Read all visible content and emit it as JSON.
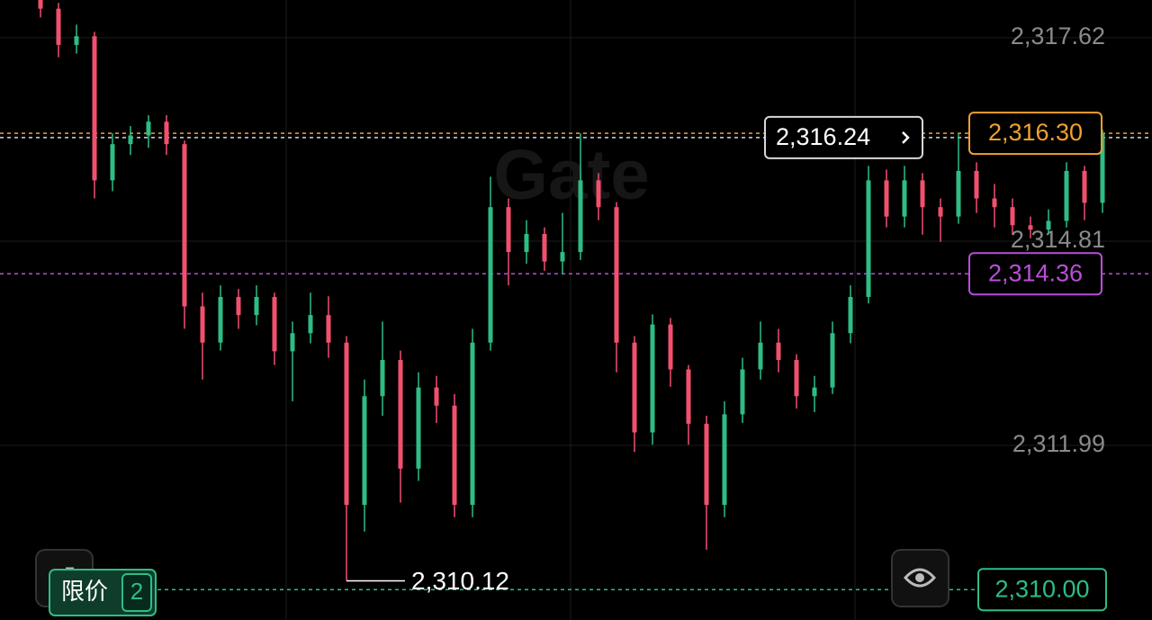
{
  "chart_data": {
    "type": "candlestick",
    "watermark": "Gate",
    "ylim": [
      2309.58,
      2318.14
    ],
    "yticks": [
      {
        "value": 2317.62,
        "label": "2,317.62"
      },
      {
        "value": 2314.81,
        "label": "2,314.81"
      },
      {
        "value": 2311.99,
        "label": "2,311.99"
      }
    ],
    "grid": true,
    "up_color": "#2ebd85",
    "down_color": "#f0506e",
    "open": [
      2318.14,
      2318.02,
      2317.52,
      2317.64,
      2315.65,
      2316.15,
      2316.27,
      2316.46,
      2316.15,
      2313.91,
      2313.41,
      2314.04,
      2313.79,
      2314.04,
      2313.29,
      2313.54,
      2313.79,
      2313.41,
      2311.17,
      2312.67,
      2313.17,
      2311.67,
      2312.79,
      2312.54,
      2311.17,
      2313.41,
      2315.28,
      2314.66,
      2314.91,
      2314.53,
      2314.66,
      2315.65,
      2315.28,
      2313.41,
      2312.17,
      2313.66,
      2313.04,
      2312.29,
      2311.17,
      2312.42,
      2313.04,
      2313.41,
      2313.17,
      2312.67,
      2312.79,
      2313.54,
      2314.04,
      2315.65,
      2315.15,
      2315.65,
      2315.28,
      2315.15,
      2315.78,
      2315.4,
      2315.28,
      2315.03,
      2314.97,
      2315.09,
      2315.78,
      2315.34
    ],
    "high": [
      2318.2,
      2318.1,
      2317.8,
      2317.7,
      2316.3,
      2316.4,
      2316.55,
      2316.55,
      2316.2,
      2314.1,
      2314.2,
      2314.15,
      2314.2,
      2314.1,
      2313.7,
      2314.1,
      2314.05,
      2313.5,
      2312.9,
      2313.7,
      2313.3,
      2313.0,
      2312.95,
      2312.7,
      2313.6,
      2315.7,
      2315.4,
      2315.1,
      2315.0,
      2315.2,
      2316.3,
      2315.75,
      2315.35,
      2313.5,
      2313.8,
      2313.75,
      2313.1,
      2312.4,
      2312.6,
      2313.2,
      2313.7,
      2313.6,
      2313.25,
      2312.95,
      2313.7,
      2314.2,
      2315.85,
      2315.8,
      2315.85,
      2315.75,
      2315.4,
      2316.3,
      2315.9,
      2315.6,
      2315.4,
      2315.15,
      2315.25,
      2315.9,
      2315.85,
      2316.35
    ],
    "low": [
      2317.9,
      2317.35,
      2317.4,
      2315.4,
      2315.5,
      2316.0,
      2316.1,
      2316.0,
      2313.6,
      2312.9,
      2313.3,
      2313.6,
      2313.65,
      2313.1,
      2312.6,
      2313.4,
      2313.2,
      2310.12,
      2310.8,
      2312.4,
      2311.2,
      2311.5,
      2312.3,
      2311.0,
      2311.0,
      2313.3,
      2314.2,
      2314.5,
      2314.4,
      2314.35,
      2314.55,
      2315.1,
      2313.0,
      2311.9,
      2312.0,
      2312.8,
      2312.0,
      2310.55,
      2311.0,
      2312.3,
      2312.9,
      2313.0,
      2312.5,
      2312.45,
      2312.7,
      2313.4,
      2313.95,
      2315.0,
      2315.0,
      2314.9,
      2314.8,
      2315.05,
      2315.2,
      2315.0,
      2314.9,
      2314.85,
      2314.9,
      2315.0,
      2315.1,
      2315.2
    ],
    "close": [
      2318.02,
      2317.52,
      2317.64,
      2315.65,
      2316.15,
      2316.27,
      2316.46,
      2316.15,
      2313.91,
      2313.41,
      2314.04,
      2313.79,
      2314.04,
      2313.29,
      2313.54,
      2313.79,
      2313.41,
      2311.17,
      2312.67,
      2313.17,
      2311.67,
      2312.79,
      2312.54,
      2311.17,
      2313.41,
      2315.28,
      2314.66,
      2314.91,
      2314.53,
      2314.66,
      2315.65,
      2315.28,
      2313.41,
      2312.17,
      2313.66,
      2313.04,
      2312.29,
      2311.17,
      2312.42,
      2313.04,
      2313.41,
      2313.17,
      2312.67,
      2312.79,
      2313.54,
      2314.04,
      2315.65,
      2315.15,
      2315.65,
      2315.28,
      2315.15,
      2315.78,
      2315.4,
      2315.28,
      2315.03,
      2314.97,
      2315.09,
      2315.78,
      2315.34,
      2316.3
    ],
    "price_lines": [
      {
        "value": 2316.24,
        "label": "2,316.24",
        "color": "#d8d8d8"
      },
      {
        "value": 2316.3,
        "label": "2,316.30",
        "color": "#f0a030"
      },
      {
        "value": 2314.36,
        "label": "2,314.36",
        "color": "#b84fd8"
      },
      {
        "value": 2310.0,
        "label": "2,310.00",
        "color": "#2ebd85"
      }
    ],
    "low_marker": {
      "value": 2310.12,
      "label": "2,310.12"
    },
    "order_tag": {
      "label": "限价",
      "count": 2
    }
  }
}
